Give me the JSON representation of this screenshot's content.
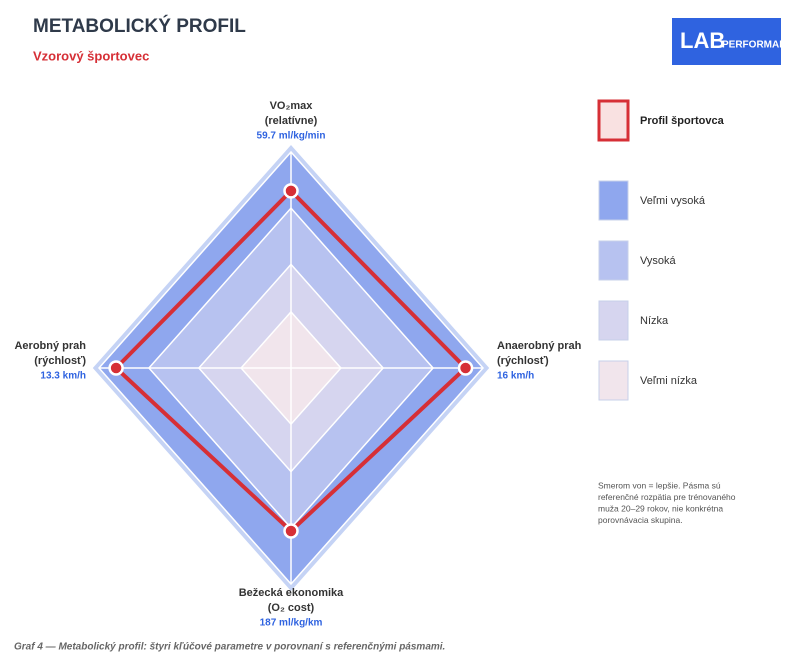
{
  "chart_data": {
    "type": "radar",
    "title": "METABOLICKÝ PROFIL",
    "subtitle": "Vzorový športovec",
    "logo": {
      "main": "LAB",
      "sub": "PERFORMANCE"
    },
    "categories": [
      [
        "VO₂max",
        "(relatívne)"
      ],
      [
        "Anaerobný prah",
        "(rýchlosť)"
      ],
      [
        "Bežecká ekonomika",
        "(O₂ cost)"
      ],
      [
        "Aerobný prah",
        "(rýchlosť)"
      ]
    ],
    "axis_lims": [
      [
        0,
        72.8
      ],
      [
        0,
        17.6
      ],
      [
        350,
        134
      ],
      [
        0,
        14.6
      ]
    ],
    "series": [
      {
        "name": "Profil športovca",
        "color": "#d62f36",
        "values": [
          59.7,
          16,
          187,
          13.3
        ],
        "value_labels": [
          "59.7 ml/kg/min",
          "16 km/h",
          "187 ml/kg/km",
          "13.3 km/h"
        ]
      }
    ],
    "bands": [
      {
        "name": "Veľmi vysoká",
        "color": "#8fa7ee"
      },
      {
        "name": "Vysoká",
        "color": "#b7c2f0"
      },
      {
        "name": "Nízka",
        "color": "#d6d5ef"
      },
      {
        "name": "Veľmi nízka",
        "color": "#f1e5ec"
      }
    ],
    "note": [
      "Smerom von = lepšie. Pásma sú",
      "referenčné rozpätia pre trénovaného",
      "muža 20–29 rokov, nie konkrétna",
      "porovnávacia skupina."
    ],
    "caption": "Graf 4 — Metabolický profil: štyri kľúčové parametre v porovnaní s referenčnými pásmami."
  }
}
